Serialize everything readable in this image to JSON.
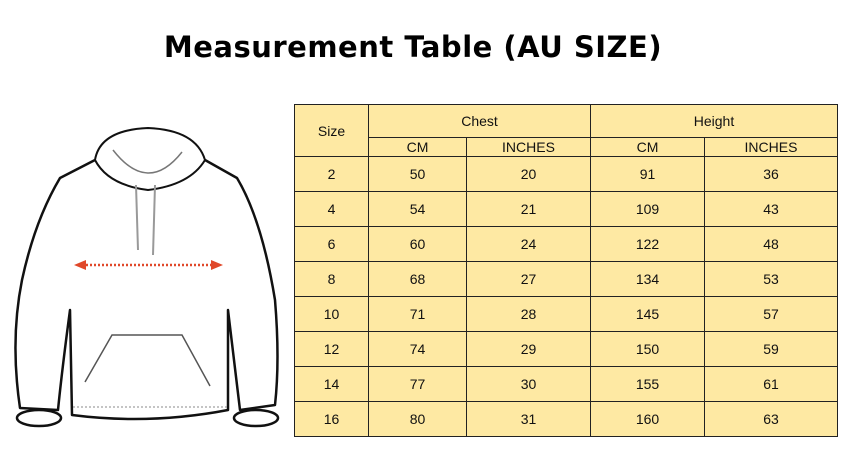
{
  "title": "Measurement Table (AU SIZE)",
  "colors": {
    "table_fill": "#fee9a3",
    "arrow": "#e0482a"
  },
  "header": {
    "size": "Size",
    "chest": "Chest",
    "height": "Height",
    "cm": "CM",
    "inches": "INCHES"
  },
  "rows": [
    {
      "size": "2",
      "chest_cm": "50",
      "chest_in": "20",
      "height_cm": "91",
      "height_in": "36"
    },
    {
      "size": "4",
      "chest_cm": "54",
      "chest_in": "21",
      "height_cm": "109",
      "height_in": "43"
    },
    {
      "size": "6",
      "chest_cm": "60",
      "chest_in": "24",
      "height_cm": "122",
      "height_in": "48"
    },
    {
      "size": "8",
      "chest_cm": "68",
      "chest_in": "27",
      "height_cm": "134",
      "height_in": "53"
    },
    {
      "size": "10",
      "chest_cm": "71",
      "chest_in": "28",
      "height_cm": "145",
      "height_in": "57"
    },
    {
      "size": "12",
      "chest_cm": "74",
      "chest_in": "29",
      "height_cm": "150",
      "height_in": "59"
    },
    {
      "size": "14",
      "chest_cm": "77",
      "chest_in": "30",
      "height_cm": "155",
      "height_in": "61"
    },
    {
      "size": "16",
      "chest_cm": "80",
      "chest_in": "31",
      "height_cm": "160",
      "height_in": "63"
    }
  ]
}
